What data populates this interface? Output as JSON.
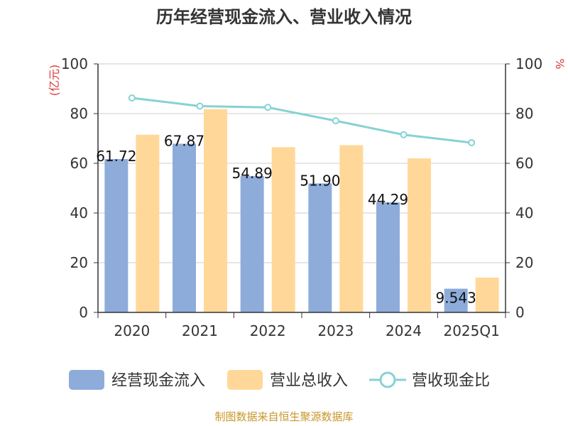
{
  "chart_data": {
    "type": "bar",
    "title": "历年经营现金流入、营业收入情况",
    "categories": [
      "2020",
      "2021",
      "2022",
      "2023",
      "2024",
      "2025Q1"
    ],
    "y_left": {
      "label": "(亿元)",
      "range": [
        0,
        100
      ],
      "ticks": [
        "0",
        "20",
        "40",
        "60",
        "80",
        "100"
      ]
    },
    "y_right": {
      "label": "%",
      "range": [
        0,
        100
      ],
      "ticks": [
        "0",
        "20",
        "40",
        "60",
        "80",
        "100"
      ]
    },
    "series": [
      {
        "name": "经营现金流入",
        "kind": "bar",
        "axis": "left",
        "color": "#8eacda",
        "values": [
          61.72,
          67.87,
          54.89,
          51.9,
          44.29,
          9.543
        ],
        "labels": [
          "61.72",
          "67.87",
          "54.89",
          "51.90",
          "44.29",
          "9.543"
        ]
      },
      {
        "name": "营业总收入",
        "kind": "bar",
        "axis": "left",
        "color": "#ffd899",
        "values": [
          71.5,
          81.8,
          66.5,
          67.3,
          62.0,
          14.0
        ]
      },
      {
        "name": "营收现金比",
        "kind": "line",
        "axis": "right",
        "color": "#86d2d4",
        "values": [
          86.3,
          83.0,
          82.5,
          77.1,
          71.5,
          68.3
        ]
      }
    ],
    "grid": true,
    "legend_position": "bottom"
  },
  "footer": {
    "source": "制图数据来自恒生聚源数据库"
  }
}
